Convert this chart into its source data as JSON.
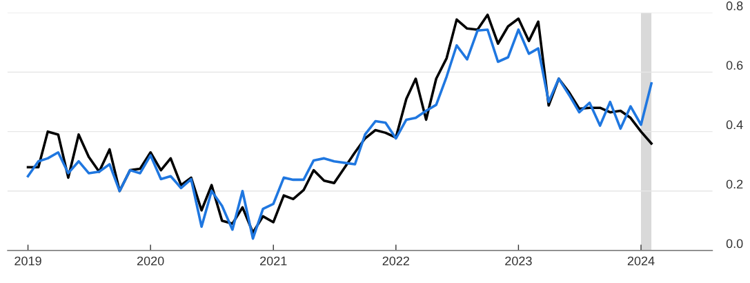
{
  "chart_data": {
    "type": "line",
    "x": [
      "2019-01",
      "2019-02",
      "2019-03",
      "2019-04",
      "2019-05",
      "2019-06",
      "2019-07",
      "2019-08",
      "2019-09",
      "2019-10",
      "2019-11",
      "2019-12",
      "2020-01",
      "2020-02",
      "2020-03",
      "2020-04",
      "2020-05",
      "2020-06",
      "2020-07",
      "2020-08",
      "2020-09",
      "2020-10",
      "2020-11",
      "2020-12",
      "2021-01",
      "2021-02",
      "2021-03",
      "2021-04",
      "2021-05",
      "2021-06",
      "2021-07",
      "2021-09",
      "2021-10",
      "2021-11",
      "2021-12",
      "2022-01",
      "2022-02",
      "2022-03",
      "2022-04",
      "2022-05",
      "2022-06",
      "2022-07",
      "2022-08",
      "2022-09",
      "2022-10",
      "2022-11",
      "2022-12",
      "2023-01",
      "2023-02",
      "2023-03",
      "2023-04",
      "2023-05",
      "2023-06",
      "2023-07",
      "2023-08",
      "2023-09",
      "2023-10",
      "2023-11",
      "2023-12",
      "2024-01",
      "2024-02"
    ],
    "series": [
      {
        "color": "#000000",
        "values": [
          0.28,
          0.28,
          0.4,
          0.39,
          0.245,
          0.39,
          0.315,
          0.265,
          0.34,
          0.2,
          0.27,
          0.275,
          0.33,
          0.27,
          0.31,
          0.22,
          0.245,
          0.135,
          0.22,
          0.1,
          0.09,
          0.145,
          0.06,
          0.115,
          0.095,
          0.185,
          0.173,
          0.203,
          0.27,
          0.235,
          0.227,
          0.33,
          0.377,
          0.405,
          0.396,
          0.38,
          0.51,
          0.578,
          0.44,
          0.578,
          0.647,
          0.777,
          0.747,
          0.743,
          0.793,
          0.696,
          0.754,
          0.78,
          0.705,
          0.77,
          0.488,
          0.578,
          0.532,
          0.477,
          0.48,
          0.48,
          0.465,
          0.47,
          0.446,
          0.4,
          0.36
        ]
      },
      {
        "color": "#1f77e0",
        "values": [
          0.25,
          0.3,
          0.31,
          0.33,
          0.26,
          0.3,
          0.26,
          0.265,
          0.29,
          0.2,
          0.27,
          0.26,
          0.32,
          0.24,
          0.25,
          0.21,
          0.24,
          0.08,
          0.2,
          0.15,
          0.07,
          0.2,
          0.04,
          0.14,
          0.157,
          0.245,
          0.238,
          0.238,
          0.303,
          0.31,
          0.3,
          0.29,
          0.39,
          0.435,
          0.43,
          0.377,
          0.44,
          0.446,
          0.47,
          0.49,
          0.585,
          0.69,
          0.643,
          0.74,
          0.743,
          0.635,
          0.65,
          0.743,
          0.662,
          0.68,
          0.5,
          0.578,
          0.523,
          0.465,
          0.497,
          0.42,
          0.5,
          0.41,
          0.485,
          0.423,
          0.562
        ]
      }
    ],
    "xlim": [
      "2018-11",
      "2024-08"
    ],
    "xticks": [
      {
        "value": "2019-01",
        "label": "2019"
      },
      {
        "value": "2020-01",
        "label": "2020"
      },
      {
        "value": "2021-01",
        "label": "2021"
      },
      {
        "value": "2022-01",
        "label": "2022"
      },
      {
        "value": "2023-01",
        "label": "2023"
      },
      {
        "value": "2024-01",
        "label": "2024"
      }
    ],
    "ylim": [
      0,
      0.8
    ],
    "yticks": [
      {
        "value": 0,
        "label": "0.0"
      },
      {
        "value": 0.2,
        "label": "0.2"
      },
      {
        "value": 0.4,
        "label": "0.4"
      },
      {
        "value": 0.6,
        "label": "0.6"
      },
      {
        "value": 0.8,
        "label": "0.8"
      }
    ],
    "bands": [
      {
        "axis": "x",
        "from": "2024-01",
        "to": "2024-02",
        "color": "#d9d9d9"
      }
    ],
    "grid": "y",
    "legend": false,
    "marker": "none",
    "line_style": "solid"
  }
}
